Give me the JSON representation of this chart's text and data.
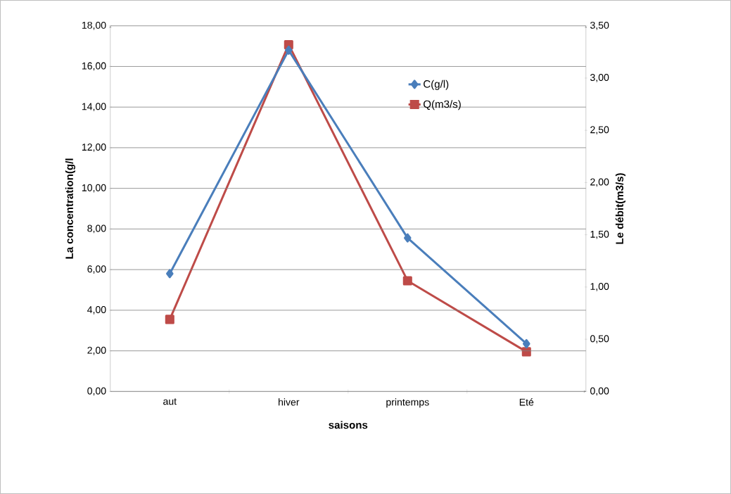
{
  "chart_data": {
    "type": "line",
    "xlabel": "saisons",
    "ylabel": "La concentration(g/l",
    "y2label": "Le débit(m3/s)",
    "categories": [
      "aut",
      "hiver",
      "printemps",
      "Eté"
    ],
    "series": [
      {
        "name": "C(g/l)",
        "color": "#4a7ebb",
        "marker": "diamond",
        "values": [
          5.8,
          16.8,
          7.56,
          2.35
        ]
      },
      {
        "name": "Q(m3/s)",
        "color": "#be4b48",
        "marker": "square",
        "axis": "y2",
        "values": [
          0.69,
          3.32,
          1.06,
          0.38
        ]
      }
    ],
    "ylim": [
      0,
      18
    ],
    "yticks": [
      {
        "value": 0,
        "label": "0,00"
      },
      {
        "value": 2,
        "label": "2,00"
      },
      {
        "value": 4,
        "label": "4,00"
      },
      {
        "value": 6,
        "label": "6,00"
      },
      {
        "value": 8,
        "label": "8,00"
      },
      {
        "value": 10,
        "label": "10,00"
      },
      {
        "value": 12,
        "label": "12,00"
      },
      {
        "value": 14,
        "label": "14,00"
      },
      {
        "value": 16,
        "label": "16,00"
      },
      {
        "value": 18,
        "label": "18,00"
      }
    ],
    "y2lim": [
      0,
      3.5
    ],
    "y2ticks": [
      {
        "value": 0,
        "label": "0,00"
      },
      {
        "value": 0.5,
        "label": "0,50"
      },
      {
        "value": 1,
        "label": "1,00"
      },
      {
        "value": 1.5,
        "label": "1,50"
      },
      {
        "value": 2,
        "label": "2,00"
      },
      {
        "value": 2.5,
        "label": "2,50"
      },
      {
        "value": 3,
        "label": "3,00"
      },
      {
        "value": 3.5,
        "label": "3,50"
      }
    ],
    "grid": "y",
    "legend": "right",
    "line_style": "solid"
  }
}
